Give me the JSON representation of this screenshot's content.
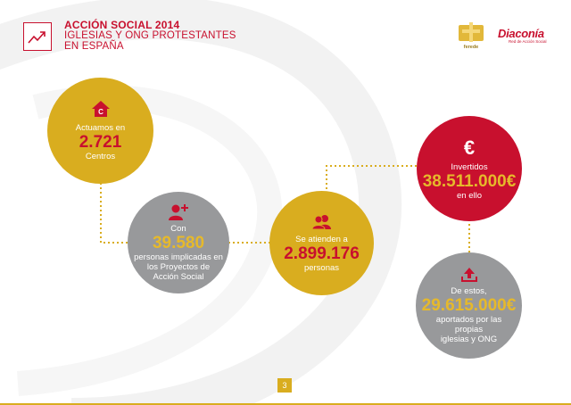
{
  "header": {
    "title": "ACCIÓN SOCIAL 2014",
    "subtitle_line1": "IGLESIAS Y ONG PROTESTANTES",
    "subtitle_line2": "EN ESPAÑA",
    "icon": "trending-up-icon"
  },
  "logos": {
    "ferede_label": "ferede",
    "diaconia_name": "Diaconía",
    "diaconia_tagline": "Red de Acción Social"
  },
  "circles": {
    "centros": {
      "pre": "Actuamos en",
      "value": "2.721",
      "post": "Centros",
      "icon": "home-icon"
    },
    "personas_implicadas": {
      "pre": "Con",
      "value": "39.580",
      "post_lines": [
        "personas implicadas en",
        "los Proyectos de",
        "Acción Social"
      ],
      "icon": "add-user-icon"
    },
    "personas_atendidas": {
      "pre": "Se atienden a",
      "value": "2.899.176",
      "post": "personas",
      "icon": "users-icon"
    },
    "invertidos": {
      "symbol": "€",
      "pre": "Invertidos",
      "value": "38.511.000€",
      "post": "en ello",
      "icon": "euro-icon"
    },
    "aportados": {
      "pre": "De estos,",
      "value": "29.615.000€",
      "post_lines": [
        "aportados por las",
        "propias",
        "iglesias y ONG"
      ],
      "icon": "upload-icon"
    }
  },
  "page_number": "3",
  "colors": {
    "accent_red": "#c8102e",
    "accent_gold": "#d9ad1f",
    "grey": "#98999b"
  }
}
